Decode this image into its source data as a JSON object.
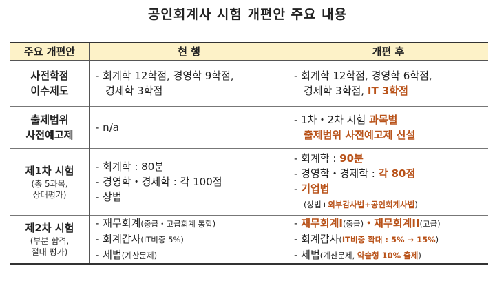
{
  "title": "공인회계사 시험 개편안 주요 내용",
  "colors": {
    "accent": "#b9531a",
    "header_bg": "#fdf2c8"
  },
  "headers": [
    "주요 개편안",
    "현  행",
    "개편 후"
  ],
  "rows": [
    {
      "label": [
        "사전학점",
        "이수제도"
      ],
      "sub": [],
      "current": [
        [
          {
            "t": "- 회계학 12학점, 경영학 9학점,"
          }
        ],
        [
          {
            "t": "경제학 3학점",
            "indent": true
          }
        ]
      ],
      "after": [
        [
          {
            "t": "- 회계학 12학점, 경영학 6학점,"
          }
        ],
        [
          {
            "t": "경제학 3학점, ",
            "indent": true
          },
          {
            "t": "IT 3학점",
            "s": "o"
          }
        ]
      ]
    },
    {
      "label": [
        "출제범위",
        "사전예고제"
      ],
      "sub": [],
      "current": [
        [
          {
            "t": "- n/a"
          }
        ]
      ],
      "after": [
        [
          {
            "t": "- 1차・2차 시험 "
          },
          {
            "t": "과목별",
            "s": "o"
          }
        ],
        [
          {
            "t": "출제범위 사전예고제 신설",
            "s": "o",
            "indent": true
          }
        ]
      ]
    },
    {
      "label": [
        "제1차 시험"
      ],
      "sub": [
        "(총 5과목,",
        "상대평가)"
      ],
      "current": [
        [
          {
            "t": "- 회계학 : 80분"
          }
        ],
        [
          {
            "t": "- 경영학・경제학 : 각 100점"
          }
        ],
        [
          {
            "t": "- 상법"
          }
        ],
        [
          {
            "t": " "
          }
        ]
      ],
      "after": [
        [
          {
            "t": "- 회계학 : "
          },
          {
            "t": "90분",
            "s": "o"
          }
        ],
        [
          {
            "t": "- 경영학・경제학 : "
          },
          {
            "t": "각 80점",
            "s": "o"
          }
        ],
        [
          {
            "t": "- "
          },
          {
            "t": "기업법",
            "s": "o"
          }
        ],
        [
          {
            "t": "(상법+",
            "s": "s",
            "indent": true
          },
          {
            "t": "외부감사법+공인회계사법",
            "s": "os"
          },
          {
            "t": ")",
            "s": "s"
          }
        ]
      ]
    },
    {
      "label": [
        "제2차 시험"
      ],
      "sub": [
        "(부분 합격,",
        "절대 평가)"
      ],
      "current": [
        [
          {
            "t": "- 재무회계"
          },
          {
            "t": "(중급・고급회계 통합)",
            "s": "s"
          }
        ],
        [
          {
            "t": "- 회계감사"
          },
          {
            "t": "(IT비중 5%)",
            "s": "s"
          }
        ],
        [
          {
            "t": "- 세법"
          },
          {
            "t": "(계산문제)",
            "s": "s"
          }
        ]
      ],
      "after": [
        [
          {
            "t": "- "
          },
          {
            "t": "재무회계I",
            "s": "o"
          },
          {
            "t": "(중급)",
            "s": "s"
          },
          {
            "t": "・재무회계II",
            "s": "o"
          },
          {
            "t": "(고급)",
            "s": "s"
          }
        ],
        [
          {
            "t": "- 회계감사"
          },
          {
            "t": "(",
            "s": "s"
          },
          {
            "t": "IT비중 확대 : 5% → 15%",
            "s": "os"
          },
          {
            "t": ")",
            "s": "s"
          }
        ],
        [
          {
            "t": "- 세법"
          },
          {
            "t": "(계산문제, ",
            "s": "s"
          },
          {
            "t": "약술형 10% 출제",
            "s": "os"
          },
          {
            "t": ")",
            "s": "s"
          }
        ]
      ]
    }
  ]
}
